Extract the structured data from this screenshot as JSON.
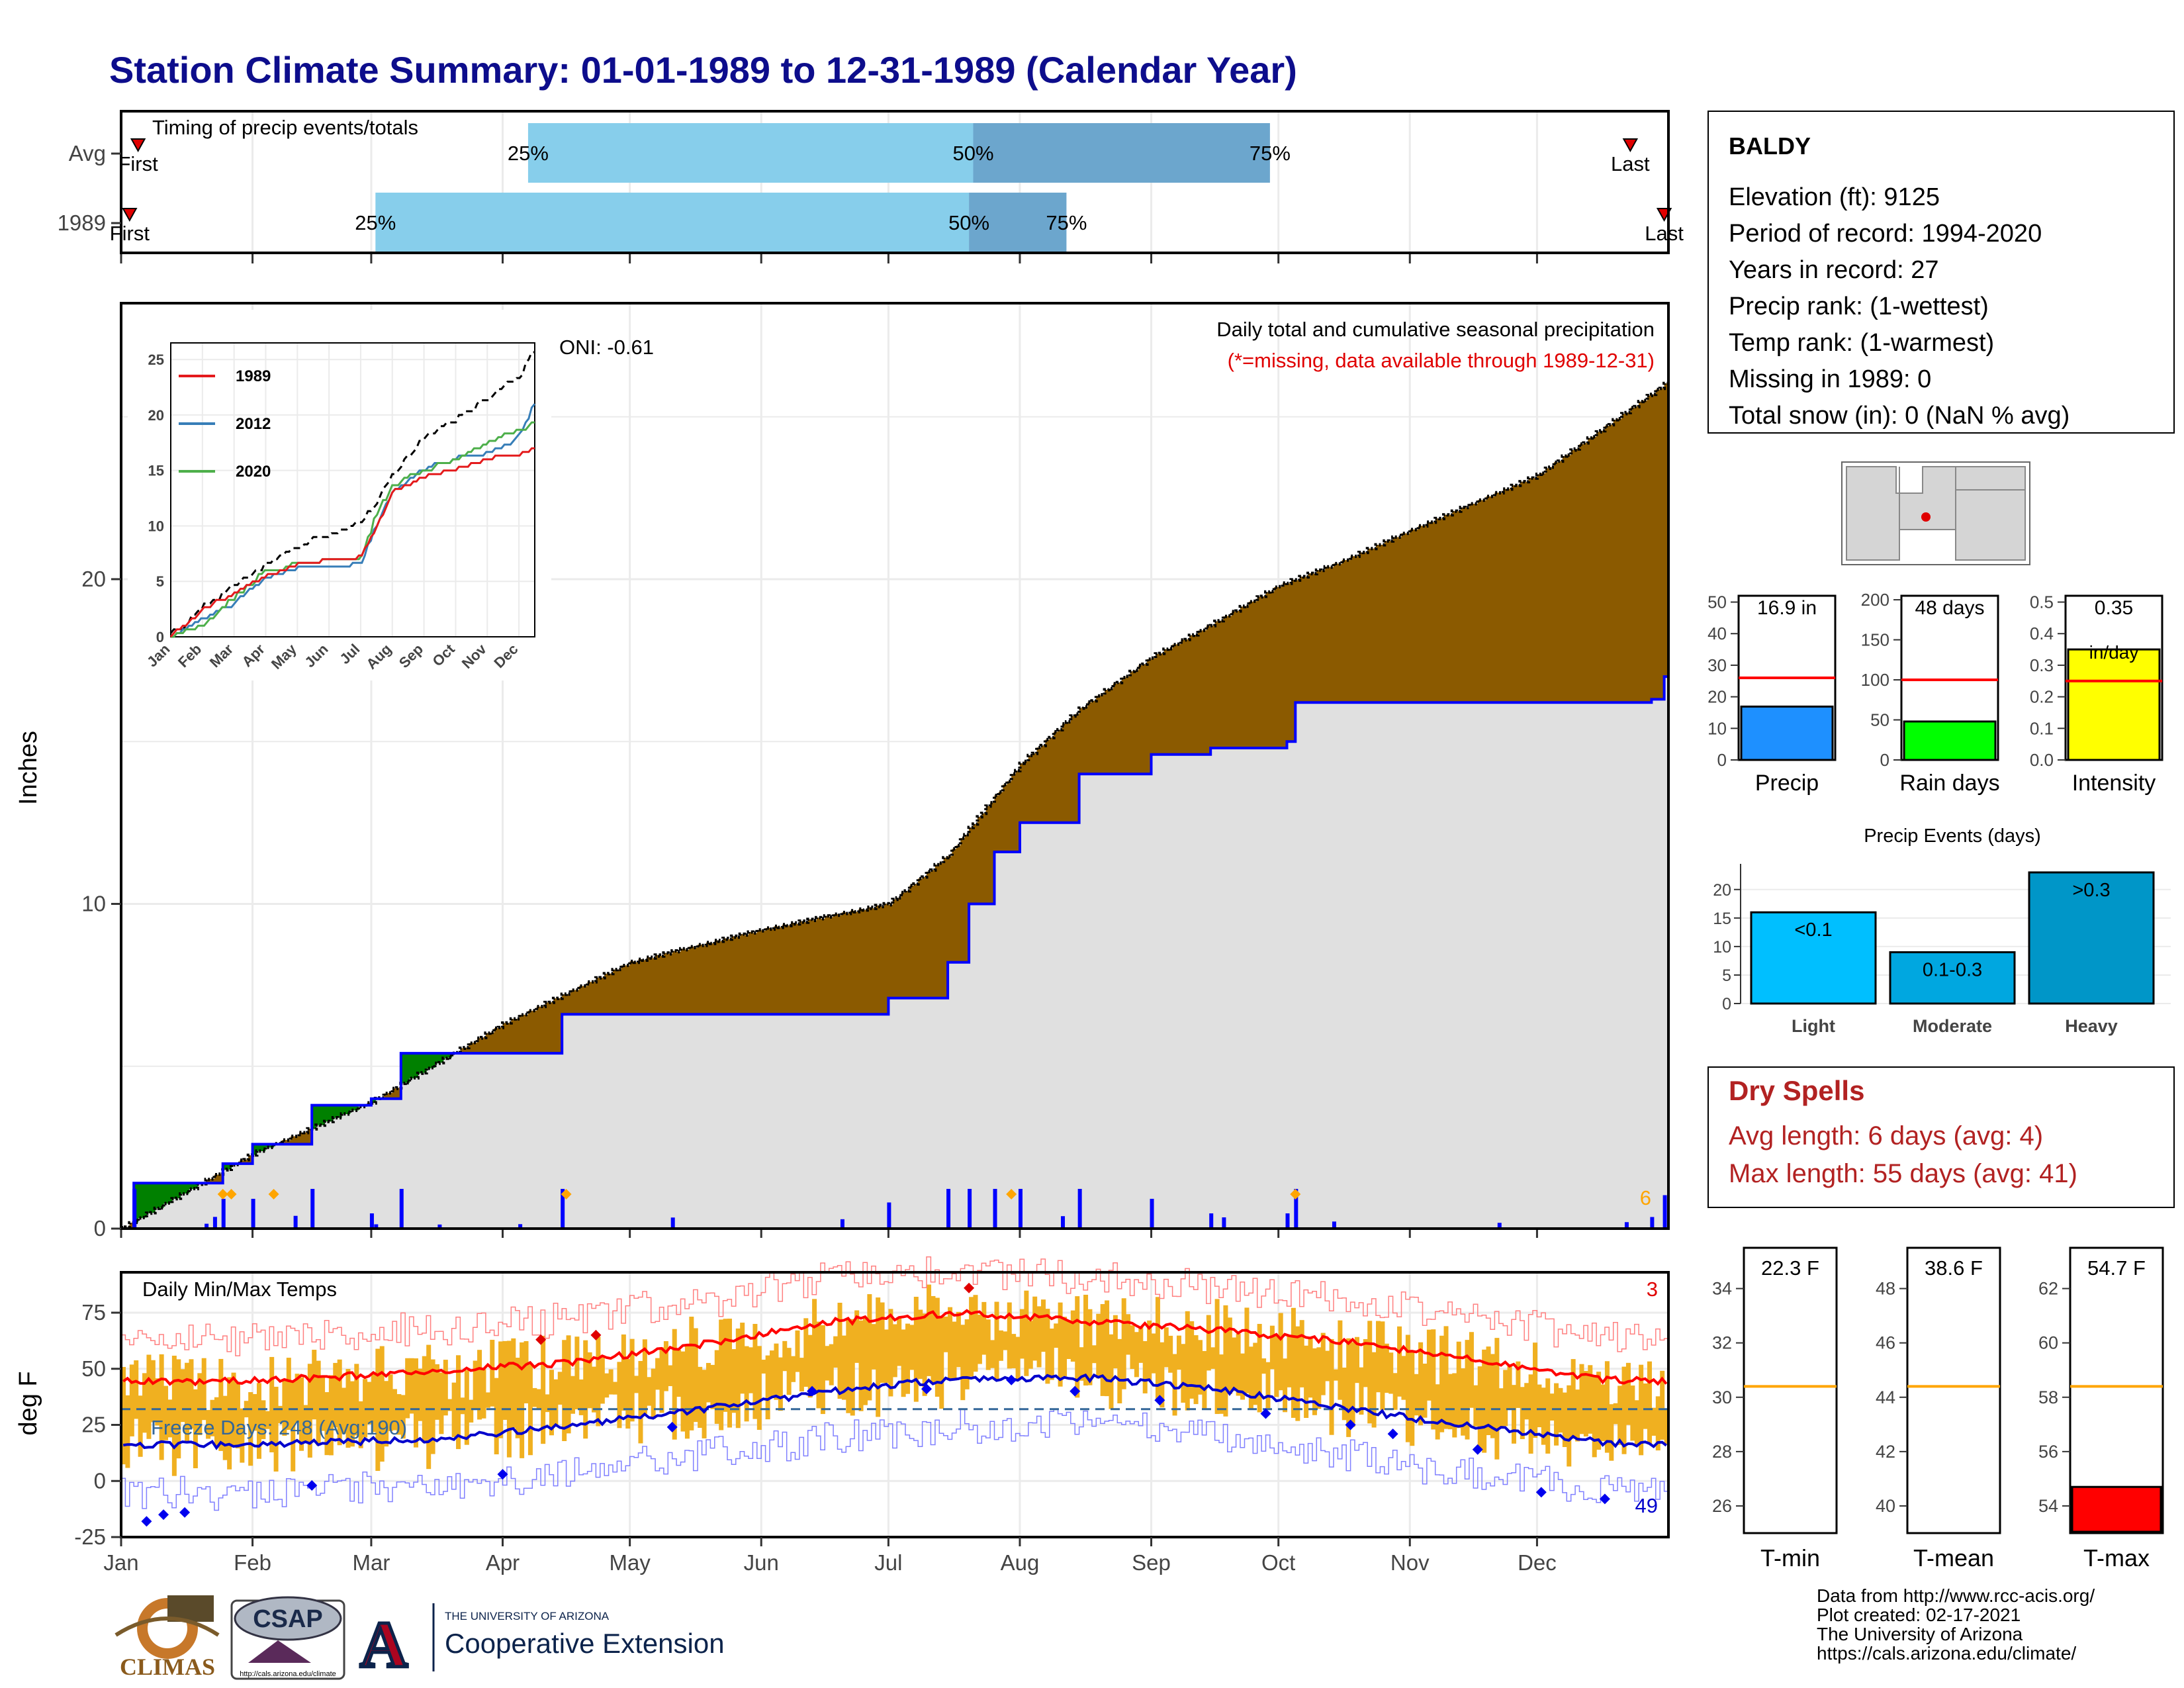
{
  "title": "Station Climate Summary: 01-01-1989 to 12-31-1989 (Calendar Year)",
  "timing_panel": {
    "label": "Timing of precip events/totals",
    "rows": [
      {
        "name": "Avg",
        "first_label": "First",
        "last_label": "Last",
        "p25": "25%",
        "p50": "50%",
        "p75": "75%",
        "q25_date": "1989-04-07",
        "q50_date": "1989-07-21",
        "q75_date": "1989-09-29",
        "first_date": "1989-01-05",
        "last_date": "1989-12-23"
      },
      {
        "name": "1989",
        "first_label": "First",
        "last_label": "Last",
        "p25": "25%",
        "p50": "50%",
        "p75": "75%",
        "q25_date": "1989-03-02",
        "q50_date": "1989-07-20",
        "q75_date": "1989-08-12",
        "first_date": "1989-01-03",
        "last_date": "1989-12-31"
      }
    ]
  },
  "precip_panel": {
    "title": "Daily total and cumulative seasonal precipitation",
    "subtitle": "(*=missing, data available through 1989-12-31)",
    "oni": "ONI: -0.61",
    "ylabel": "Inches",
    "y_ticks": [
      "0",
      "10",
      "20"
    ],
    "ylim": [
      0,
      28.5
    ],
    "corner_count": "6"
  },
  "inset": {
    "x_ticks": [
      "Jan",
      "Feb",
      "Mar",
      "Apr",
      "May",
      "Jun",
      "Jul",
      "Aug",
      "Sep",
      "Oct",
      "Nov",
      "Dec"
    ],
    "y_ticks": [
      "0",
      "5",
      "10",
      "15",
      "20",
      "25"
    ],
    "legend": [
      {
        "name": "1989",
        "color": "#e41a1c"
      },
      {
        "name": "2012",
        "color": "#377eb8"
      },
      {
        "name": "2020",
        "color": "#4daf4a"
      }
    ]
  },
  "temp_panel": {
    "title": "Daily Min/Max Temps",
    "ylabel": "deg F",
    "y_ticks": [
      "-25",
      "0",
      "25",
      "50",
      "75"
    ],
    "freeze_label": "Freeze Days: 248 (Avg:190)",
    "max_count": "3",
    "min_count": "49"
  },
  "months": [
    "Jan",
    "Feb",
    "Mar",
    "Apr",
    "May",
    "Jun",
    "Jul",
    "Aug",
    "Sep",
    "Oct",
    "Nov",
    "Dec"
  ],
  "station": {
    "name": "BALDY",
    "lines": [
      "Elevation (ft): 9125",
      "Period of record: 1994-2020",
      "Years in record: 27",
      "Precip rank:  (1-wettest)",
      "Temp rank:  (1-warmest)",
      "Missing in 1989: 0",
      "Total snow (in): 0 (NaN % avg)"
    ]
  },
  "mini_bars": [
    {
      "label": "Precip",
      "value_label": "16.9 in",
      "ticks": [
        "0",
        "10",
        "20",
        "30",
        "40",
        "50"
      ],
      "ymax": 52,
      "value": 16.9,
      "avg": 26,
      "color": "#1e90ff"
    },
    {
      "label": "Rain days",
      "value_label": "48 days",
      "ticks": [
        "0",
        "50",
        "100",
        "150",
        "200"
      ],
      "ymax": 205,
      "value": 48,
      "avg": 100,
      "color": "#00ff00"
    },
    {
      "label": "Intensity",
      "value_label": "0.35",
      "value_label2": "in/day",
      "ticks": [
        "0.0",
        "0.1",
        "0.2",
        "0.3",
        "0.4",
        "0.5"
      ],
      "ymax": 0.52,
      "value": 0.35,
      "avg": 0.25,
      "color": "#ffff00"
    }
  ],
  "precip_events": {
    "title": "Precip Events (days)",
    "categories": [
      "Light",
      "Moderate",
      "Heavy"
    ],
    "bar_labels": [
      "<0.1",
      "0.1-0.3",
      ">0.3"
    ],
    "values": [
      16,
      9,
      23
    ],
    "ticks": [
      "0",
      "5",
      "10",
      "15",
      "20"
    ],
    "colors": [
      "#00bfff",
      "#00a7e0",
      "#0096c8"
    ]
  },
  "dry_spells": {
    "title": "Dry Spells",
    "avg_line": "Avg length: 6 days (avg: 4)",
    "max_line": "Max length: 55 days (avg: 41)"
  },
  "temp_bars": [
    {
      "label": "T-min",
      "value_label": "22.3 F",
      "ticks": [
        "26",
        "28",
        "30",
        "32",
        "34"
      ],
      "ymin": 25,
      "ymax": 35.5,
      "value": 22.3,
      "avg": 30.4
    },
    {
      "label": "T-mean",
      "value_label": "38.6 F",
      "ticks": [
        "40",
        "42",
        "44",
        "46",
        "48"
      ],
      "ymin": 39,
      "ymax": 49.5,
      "value": 38.6,
      "avg": 44.4
    },
    {
      "label": "T-max",
      "value_label": "54.7 F",
      "ticks": [
        "54",
        "56",
        "58",
        "60",
        "62"
      ],
      "ymin": 53,
      "ymax": 63.5,
      "value": 54.7,
      "avg": 58.4
    }
  ],
  "footer": {
    "lines": [
      "Data from http://www.rcc-acis.org/",
      "Plot created: 02-17-2021",
      "The University of Arizona",
      "https://cals.arizona.edu/climate/"
    ],
    "climas": "CLIMAS",
    "csap": "CSAP",
    "csap_url": "http://cals.arizona.edu/climate",
    "uofa_small": "THE UNIVERSITY OF ARIZONA",
    "uofa_big": "Cooperative Extension"
  },
  "colors": {
    "title": "#0d0d8c",
    "cumulative_fill": "#8b5a00",
    "surplus_fill": "#008000",
    "avg_fill": "#e0e0e0",
    "precip_line": "#0000ff",
    "temp_bar": "#f0b020",
    "tmax_line": "#ff0000",
    "tmin_line": "#0000cc",
    "dry_spells": "#b22222"
  },
  "chart_data": [
    {
      "type": "area",
      "title": "Daily total and cumulative seasonal precipitation",
      "ylabel": "Inches",
      "ylim": [
        0,
        28.5
      ],
      "series": [
        {
          "name": "1989 cumulative",
          "x": [
            "1989-01-01",
            "1989-01-04",
            "1989-01-15",
            "1989-01-25",
            "1989-02-01",
            "1989-02-15",
            "1989-03-01",
            "1989-03-08",
            "1989-04-01",
            "1989-04-15",
            "1989-05-01",
            "1989-06-01",
            "1989-07-01",
            "1989-07-15",
            "1989-07-20",
            "1989-07-26",
            "1989-08-01",
            "1989-08-15",
            "1989-09-01",
            "1989-09-15",
            "1989-10-03",
            "1989-10-05",
            "1989-12-28",
            "1989-12-31"
          ],
          "values": [
            0,
            1.4,
            1.4,
            2.0,
            2.6,
            3.8,
            4.0,
            5.4,
            5.4,
            6.6,
            6.6,
            6.6,
            7.1,
            8.2,
            10.0,
            11.6,
            12.5,
            14.0,
            14.6,
            14.8,
            15.0,
            16.2,
            16.3,
            17.0
          ]
        },
        {
          "name": "Average cumulative",
          "x": [
            "1989-01-01",
            "1989-02-01",
            "1989-03-01",
            "1989-04-01",
            "1989-05-01",
            "1989-06-01",
            "1989-07-01",
            "1989-07-15",
            "1989-08-01",
            "1989-08-15",
            "1989-09-01",
            "1989-09-15",
            "1989-10-01",
            "1989-10-15",
            "1989-11-01",
            "1989-12-01",
            "1989-12-31"
          ],
          "values": [
            0,
            2.3,
            3.9,
            6.3,
            8.2,
            9.2,
            10.0,
            11.5,
            14.3,
            16.0,
            17.6,
            18.6,
            19.8,
            20.5,
            21.5,
            23.2,
            26.0
          ]
        }
      ]
    },
    {
      "type": "line",
      "title": "Daily Min/Max Temps",
      "ylabel": "deg F",
      "x": [
        "Jan",
        "Feb",
        "Mar",
        "Apr",
        "May",
        "Jun",
        "Jul",
        "Aug",
        "Sep",
        "Oct",
        "Nov",
        "Dec"
      ],
      "series": [
        {
          "name": "Avg max",
          "values": [
            44,
            46,
            49,
            53,
            61,
            71,
            75,
            71,
            67,
            62,
            54,
            45
          ]
        },
        {
          "name": "Avg min",
          "values": [
            16,
            17,
            19,
            25,
            32,
            40,
            46,
            46,
            41,
            32,
            24,
            17
          ]
        }
      ]
    }
  ]
}
